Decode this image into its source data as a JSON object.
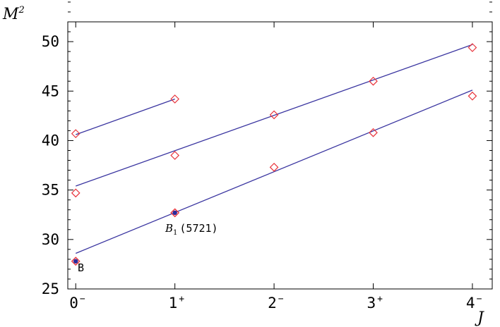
{
  "chart_data": {
    "type": "scatter",
    "title": "",
    "xlabel": "J",
    "ylabel": {
      "base": "M",
      "sup": "2"
    },
    "xlim": [
      -0.08,
      4.2
    ],
    "ylim": [
      25,
      52
    ],
    "grid": false,
    "x_ticks": [
      {
        "value": 0,
        "label": "0",
        "sup": "−"
      },
      {
        "value": 1,
        "label": "1",
        "sup": "+"
      },
      {
        "value": 2,
        "label": "2",
        "sup": "−"
      },
      {
        "value": 3,
        "label": "3",
        "sup": "+"
      },
      {
        "value": 4,
        "label": "4",
        "sup": "−"
      }
    ],
    "y_ticks": [
      25,
      30,
      35,
      40,
      45,
      50
    ],
    "series": [
      {
        "points": [
          [
            0,
            40.7
          ],
          [
            1,
            44.2
          ]
        ],
        "fit_line": [
          [
            0,
            40.6
          ],
          [
            1,
            44.2
          ]
        ]
      },
      {
        "points": [
          [
            0,
            34.7
          ],
          [
            1,
            38.5
          ],
          [
            2,
            42.6
          ],
          [
            3,
            46.0
          ],
          [
            4,
            49.4
          ]
        ],
        "fit_line": [
          [
            0,
            35.4
          ],
          [
            4,
            49.7
          ]
        ]
      },
      {
        "points": [
          [
            0,
            27.8
          ],
          [
            1,
            32.7
          ],
          [
            2,
            37.3
          ],
          [
            3,
            40.8
          ],
          [
            4,
            44.5
          ]
        ],
        "fit_line": [
          [
            0,
            28.6
          ],
          [
            4,
            45.1
          ]
        ]
      }
    ],
    "experimental_points": [
      {
        "x": 0,
        "y": 27.8
      },
      {
        "x": 1,
        "y": 32.7
      }
    ],
    "annotations": [
      {
        "text": "B",
        "x": 0,
        "y": 27.8
      },
      {
        "base": "B",
        "sub": "1",
        "rest": "(5721)",
        "x": 1,
        "y": 32.7
      }
    ],
    "colors": {
      "marker": "#e8343c",
      "line": "#3a35a0",
      "experimental_fill": "#2b2a9c",
      "axis": "#000000"
    }
  }
}
